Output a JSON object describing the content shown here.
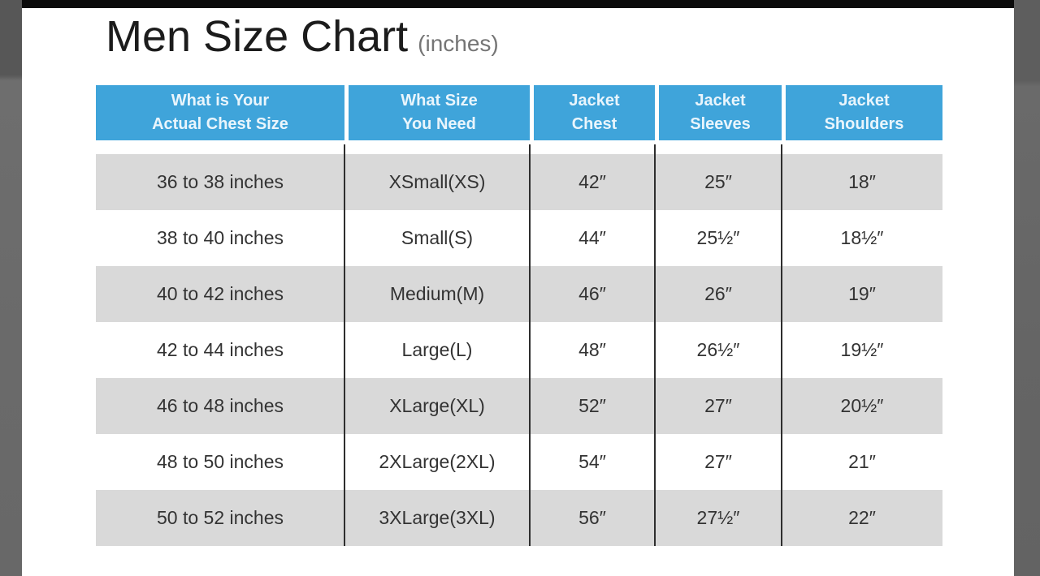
{
  "page": {
    "title": "Men Size Chart",
    "title_suffix": "(inches)"
  },
  "colors": {
    "header_bg": "#3fa4da",
    "header_text": "#e9f5fc",
    "row_alt_bg": "#d9d9d9",
    "body_text": "#333333",
    "column_divider": "#2e2e2e",
    "letterbox_bar": "#6a6a6a",
    "top_strip": "#0b0b0b",
    "title_text": "#1c1c1c",
    "title_suffix_text": "#757575"
  },
  "table": {
    "headers": [
      {
        "line1": "What is Your",
        "line2": "Actual Chest Size"
      },
      {
        "line1": "What Size",
        "line2": "You Need"
      },
      {
        "line1": "Jacket",
        "line2": "Chest"
      },
      {
        "line1": "Jacket",
        "line2": "Sleeves"
      },
      {
        "line1": "Jacket",
        "line2": "Shoulders"
      }
    ],
    "rows": [
      {
        "chest_range": "36 to 38 inches",
        "size": "XSmall(XS)",
        "jacket_chest": "42″",
        "jacket_sleeves": "25″",
        "jacket_shoulders": "18″"
      },
      {
        "chest_range": "38 to 40 inches",
        "size": "Small(S)",
        "jacket_chest": "44″",
        "jacket_sleeves": "25½″",
        "jacket_shoulders": "18½″"
      },
      {
        "chest_range": "40 to 42 inches",
        "size": "Medium(M)",
        "jacket_chest": "46″",
        "jacket_sleeves": "26″",
        "jacket_shoulders": "19″"
      },
      {
        "chest_range": "42 to 44 inches",
        "size": "Large(L)",
        "jacket_chest": "48″",
        "jacket_sleeves": "26½″",
        "jacket_shoulders": "19½″"
      },
      {
        "chest_range": "46 to 48 inches",
        "size": "XLarge(XL)",
        "jacket_chest": "52″",
        "jacket_sleeves": "27″",
        "jacket_shoulders": "20½″"
      },
      {
        "chest_range": "48 to 50 inches",
        "size": "2XLarge(2XL)",
        "jacket_chest": "54″",
        "jacket_sleeves": "27″",
        "jacket_shoulders": "21″"
      },
      {
        "chest_range": "50 to 52 inches",
        "size": "3XLarge(3XL)",
        "jacket_chest": "56″",
        "jacket_sleeves": "27½″",
        "jacket_shoulders": "22″"
      }
    ]
  }
}
